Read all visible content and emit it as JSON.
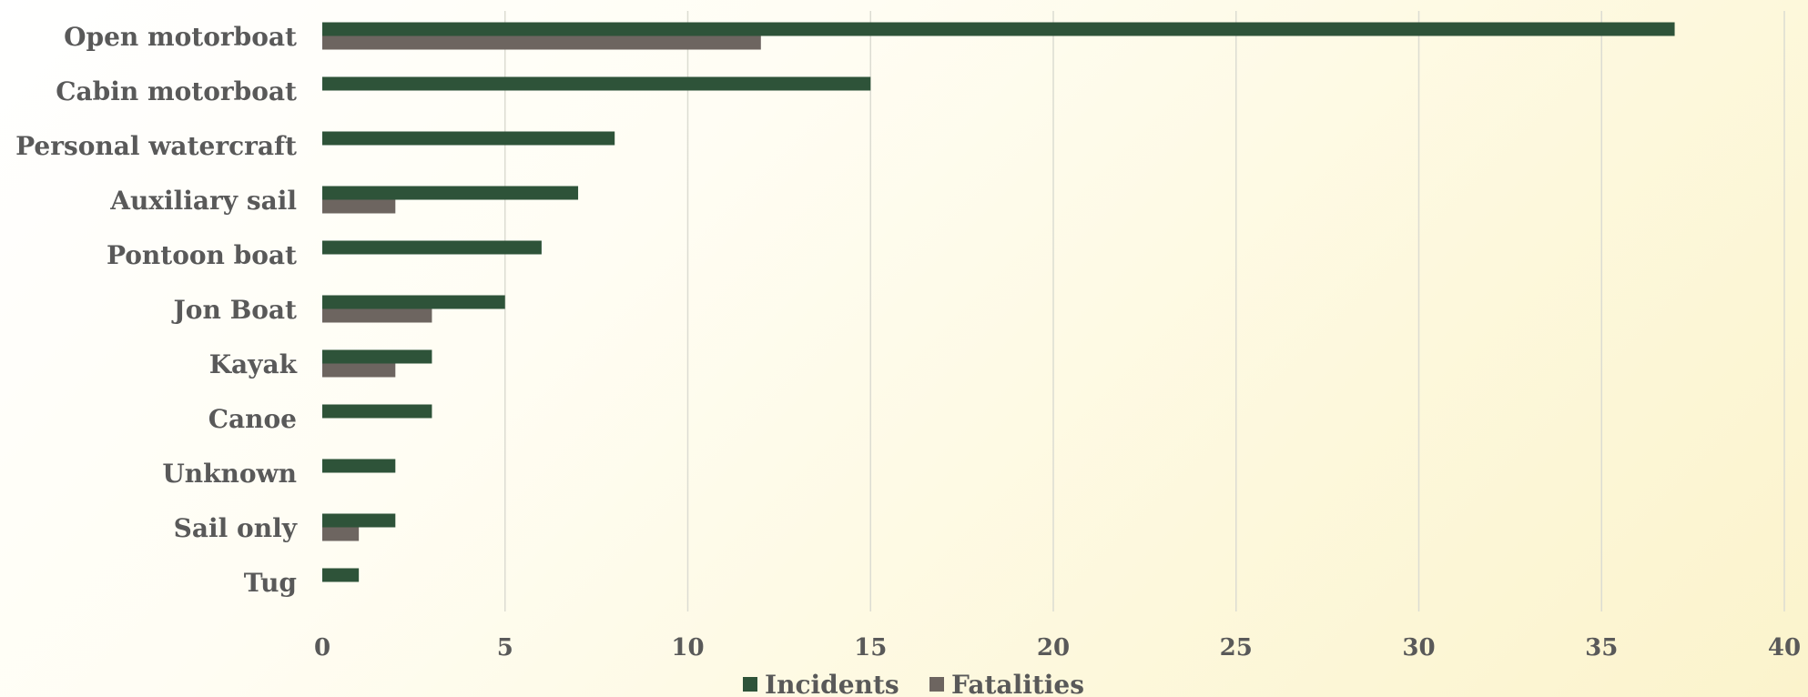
{
  "chart_data": {
    "type": "bar",
    "orientation": "horizontal",
    "categories": [
      "Open motorboat",
      "Cabin motorboat",
      "Personal watercraft",
      "Auxiliary sail",
      "Pontoon boat",
      "Jon Boat",
      "Kayak",
      "Canoe",
      "Unknown",
      "Sail only",
      "Tug"
    ],
    "series": [
      {
        "name": "Incidents",
        "color": "#2e5339",
        "values": [
          37,
          15,
          8,
          7,
          6,
          5,
          3,
          3,
          2,
          2,
          1
        ]
      },
      {
        "name": "Fatalities",
        "color": "#6d6560",
        "values": [
          12,
          0,
          0,
          2,
          0,
          3,
          2,
          0,
          0,
          1,
          0
        ]
      }
    ],
    "xlim": [
      0,
      40
    ],
    "xticks": [
      0,
      5,
      10,
      15,
      20,
      25,
      30,
      35,
      40
    ],
    "grid": true,
    "legend": "bottom-center",
    "title": "",
    "xlabel": "",
    "ylabel": ""
  }
}
